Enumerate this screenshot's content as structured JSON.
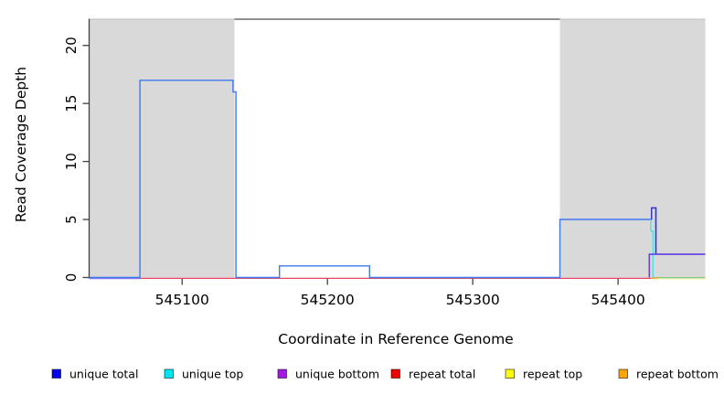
{
  "chart_data": {
    "type": "line",
    "title": "",
    "xlabel": "Coordinate in Reference Genome",
    "ylabel": "Read Coverage Depth",
    "xlim": [
      545036,
      545460
    ],
    "ylim": [
      0,
      22.3
    ],
    "x_ticks": [
      545100,
      545200,
      545300,
      545400
    ],
    "y_ticks": [
      0,
      5,
      10,
      15,
      20
    ],
    "grid": false,
    "legend_position": "bottom",
    "shaded_regions": {
      "color": "#d9d9d9",
      "edge_color": "#bdbdbd",
      "ranges": [
        {
          "start": 545036,
          "end": 545136
        },
        {
          "start": 545360,
          "end": 545460
        }
      ]
    },
    "series": [
      {
        "name": "repeat-total-line",
        "legend_label": "repeat total",
        "color": "#e8435f",
        "width": 1.2,
        "yoff": 0.9,
        "summary": "0 from 545036 to 545423",
        "points": [
          [
            545036,
            0
          ],
          [
            545423,
            0
          ]
        ]
      },
      {
        "name": "repeat-top-line",
        "legend_label": "repeat top",
        "color": "#efefa0",
        "width": 1.2,
        "yoff": 1.4,
        "summary": "0 throughout; visible 545424-545460 under unique-top baseline",
        "points": [
          [
            545424,
            0
          ],
          [
            545460,
            0
          ]
        ]
      },
      {
        "name": "unique-bottom-baseline",
        "legend_label": "unique bottom",
        "color": "#9077ee",
        "width": 1.2,
        "yoff": 1.1,
        "summary": "0 from 545036 to 545422 (fringe visible 545036-545071)",
        "points": [
          [
            545036,
            0
          ],
          [
            545071,
            0
          ]
        ]
      },
      {
        "name": "unique-total-line",
        "legend_label": "unique total",
        "color": "#3e79f0",
        "width": 1.4,
        "yoff": 0,
        "summary": "0; 17 at 545071-545135; 16 at 545135-545137; 1 at 545167-545229; 5 at 545360-545423; 6 at 545423-545426; 2 at 545426-545460",
        "points": [
          [
            545036,
            0
          ],
          [
            545071,
            0
          ],
          [
            545071,
            17
          ],
          [
            545135,
            17
          ],
          [
            545135,
            16
          ],
          [
            545137,
            16
          ],
          [
            545137,
            0
          ],
          [
            545167,
            0
          ],
          [
            545167,
            1
          ],
          [
            545229,
            1
          ],
          [
            545229,
            0
          ],
          [
            545360,
            0
          ],
          [
            545360,
            5
          ],
          [
            545423,
            5
          ],
          [
            545423,
            6
          ],
          [
            545426,
            6
          ],
          [
            545426,
            2
          ],
          [
            545460,
            2
          ]
        ]
      },
      {
        "name": "unique-total-spike-overlay",
        "render_only": true,
        "color": "#3737d0",
        "width": 1.5,
        "yoff": 0,
        "summary": "darker overlap where total spike (6) crosses other series",
        "points": [
          [
            545423,
            5
          ],
          [
            545423,
            6
          ],
          [
            545426,
            6
          ],
          [
            545426,
            2
          ]
        ]
      },
      {
        "name": "unique-top-line",
        "legend_label": "unique top",
        "color": "#3edce8",
        "width": 1.2,
        "yoff": 0,
        "summary": "5 at 545360-545422 (hidden under total); 4 at 545422-545424; 0 after",
        "points": [
          [
            545422.5,
            5
          ],
          [
            545422.5,
            4
          ],
          [
            545424,
            4
          ],
          [
            545424,
            0
          ]
        ]
      },
      {
        "name": "unique-top-baseline-blend",
        "render_only": true,
        "color": "#74c87a",
        "width": 1.2,
        "yoff": 0.2,
        "summary": "unique top at 0 over repeat top (cyan over yellow reads greenish)",
        "points": [
          [
            545424,
            0
          ],
          [
            545460,
            0
          ]
        ]
      },
      {
        "name": "repeat-bottom-line",
        "legend_label": "repeat bottom",
        "color": "#f5a623",
        "width": 1.4,
        "yoff": 0.6,
        "summary": "0 throughout; visible dot near 545424",
        "points": [
          [
            545423,
            0
          ],
          [
            545427,
            0
          ]
        ]
      },
      {
        "name": "unique-bottom-line",
        "legend_label": "unique bottom",
        "color": "#6a44e6",
        "width": 1.6,
        "yoff": 0,
        "summary": "rises 0 to 2 at 545422; 2 to 545460",
        "points": [
          [
            545421.5,
            0
          ],
          [
            545421.5,
            2
          ],
          [
            545460,
            2
          ]
        ]
      }
    ]
  },
  "legend": {
    "items": [
      {
        "label": "unique total",
        "color": "#0000f5"
      },
      {
        "label": "unique top",
        "color": "#00e5ee"
      },
      {
        "label": "unique bottom",
        "color": "#a01ae0"
      },
      {
        "label": "repeat total",
        "color": "#ee0000"
      },
      {
        "label": "repeat top",
        "color": "#ffff00"
      },
      {
        "label": "repeat bottom",
        "color": "#ffa500"
      }
    ],
    "swatch_border": "rgba(0,0,0,0.55)"
  }
}
